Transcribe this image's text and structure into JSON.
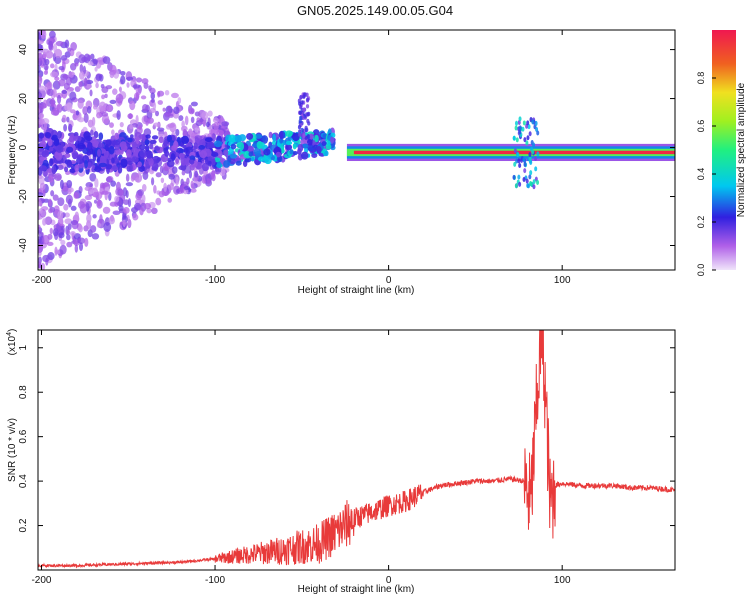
{
  "title": "GN05.2025.149.00.05.G04",
  "colors": {
    "snr_line": "#e83a3a",
    "spectro_core": "#e8352e",
    "spectro_halo": "#cfa0f0"
  },
  "chart_data": [
    {
      "type": "heatmap",
      "xlabel": "Height of straight line (km)",
      "ylabel": "Frequency (Hz)",
      "xlim": [
        -202,
        165
      ],
      "ylim": [
        -50,
        48
      ],
      "xticks": [
        -200,
        -100,
        0,
        100
      ],
      "yticks": [
        -40,
        -20,
        0,
        20,
        40
      ],
      "colorbar": {
        "label": "Normalized spectral amplitude",
        "range": [
          0,
          1
        ],
        "ticks": [
          0.0,
          0.2,
          0.4,
          0.6,
          0.8
        ]
      },
      "features": [
        {
          "x_range": [
            -202,
            -110
          ],
          "freq_center": 0,
          "freq_spread": 48,
          "amplitude": 0.15
        },
        {
          "x_range": [
            -110,
            -25
          ],
          "freq_center": 2,
          "freq_spread": 10,
          "amplitude": 0.4
        },
        {
          "x_range": [
            -25,
            165
          ],
          "freq_center": -2,
          "freq_spread": 3,
          "amplitude": 1.0
        },
        {
          "x_range": [
            72,
            88
          ],
          "freq_center": -2,
          "freq_spread": 18,
          "amplitude": 0.5
        }
      ]
    },
    {
      "type": "line",
      "xlabel": "Height of straight line (km)",
      "ylabel": "SNR (10 * v/v)",
      "y_multiplier_label": "(x10",
      "y_multiplier_exp": "4",
      "xlim": [
        -202,
        165
      ],
      "ylim": [
        0,
        1.08
      ],
      "xticks": [
        -200,
        -100,
        0,
        100
      ],
      "yticks": [
        0.2,
        0.4,
        0.6,
        0.8,
        1.0
      ],
      "series": [
        {
          "x": [
            -202,
            -180,
            -160,
            -140,
            -120,
            -100,
            -80,
            -60,
            -40,
            -30,
            -20,
            -10,
            0,
            10,
            20,
            30,
            40,
            50,
            60,
            70,
            78,
            82,
            85,
            88,
            90,
            93,
            96,
            100,
            110,
            120,
            130,
            140,
            150,
            165
          ],
          "y": [
            0.02,
            0.02,
            0.025,
            0.03,
            0.035,
            0.05,
            0.07,
            0.09,
            0.12,
            0.17,
            0.23,
            0.26,
            0.29,
            0.31,
            0.35,
            0.38,
            0.39,
            0.4,
            0.4,
            0.41,
            0.4,
            0.3,
            0.7,
            1.08,
            0.85,
            0.3,
            0.38,
            0.39,
            0.38,
            0.38,
            0.38,
            0.37,
            0.37,
            0.36
          ]
        }
      ]
    }
  ]
}
